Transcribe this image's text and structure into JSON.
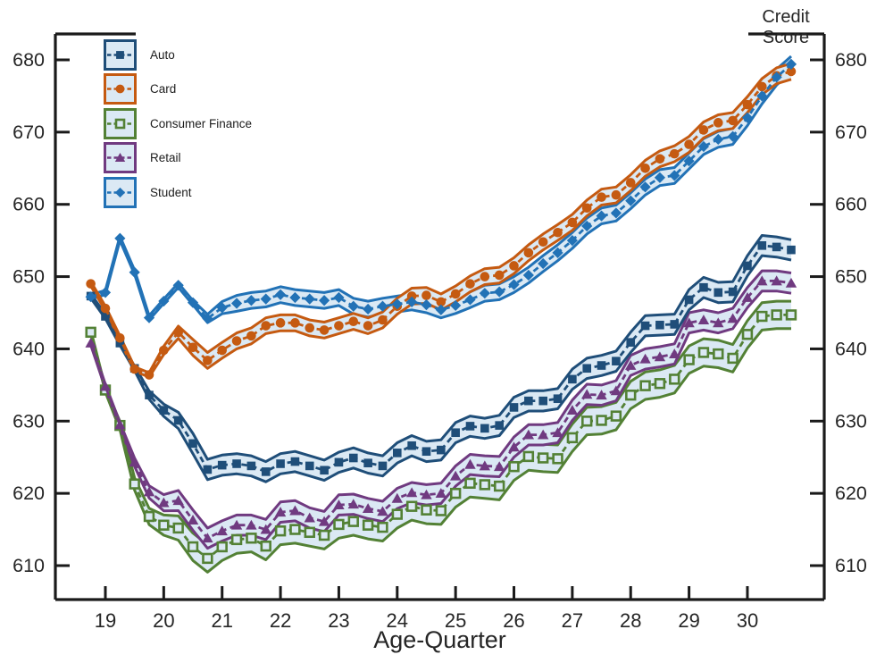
{
  "labels": {
    "y_axis_title": "Credit Score",
    "x_axis_title": "Age-Quarter"
  },
  "colors": {
    "band_fill": "#dbe9f4",
    "axis": "#1a1a1a",
    "text": "#262626"
  },
  "chart_data": {
    "type": "line",
    "title": "",
    "ylabel": "Credit Score",
    "xlabel": "Age-Quarter",
    "x_ticks": [
      19,
      20,
      21,
      22,
      23,
      24,
      25,
      26,
      27,
      28,
      29,
      30
    ],
    "y_ticks": [
      610,
      620,
      630,
      640,
      650,
      660,
      670,
      680
    ],
    "xlim": [
      18.15,
      31.31
    ],
    "ylim": [
      605.5,
      683.5
    ],
    "grid": false,
    "legend_position": "top-left-inside",
    "band_fill": "#dbe9f4",
    "x": [
      18.75,
      19.0,
      19.25,
      19.5,
      19.75,
      20.0,
      20.25,
      20.5,
      20.75,
      21.0,
      21.25,
      21.5,
      21.75,
      22.0,
      22.25,
      22.5,
      22.75,
      23.0,
      23.25,
      23.5,
      23.75,
      24.0,
      24.25,
      24.5,
      24.75,
      25.0,
      25.25,
      25.5,
      25.75,
      26.0,
      26.25,
      26.5,
      26.75,
      27.0,
      27.25,
      27.5,
      27.75,
      28.0,
      28.25,
      28.5,
      28.75,
      29.0,
      29.25,
      29.5,
      29.75,
      30.0,
      30.25,
      30.5,
      30.75
    ],
    "series": [
      {
        "name": "Auto",
        "color": "#1f4e79",
        "marker": "square",
        "line_style": "dashed",
        "band_max_halfwidth": 1.4,
        "band_ramp_start_age": 19.5,
        "values": [
          647.3,
          644.5,
          640.8,
          637.3,
          633.6,
          631.5,
          630.1,
          626.9,
          623.3,
          623.9,
          624.1,
          623.8,
          623.0,
          624.1,
          624.4,
          623.8,
          623.2,
          624.3,
          624.9,
          624.2,
          623.8,
          625.6,
          626.6,
          625.8,
          626.0,
          628.4,
          629.3,
          629.0,
          629.4,
          631.9,
          632.8,
          632.8,
          633.1,
          635.8,
          637.3,
          637.7,
          638.3,
          640.9,
          643.2,
          643.3,
          643.4,
          646.8,
          648.5,
          647.8,
          647.9,
          651.5,
          654.3,
          654.1,
          653.7
        ]
      },
      {
        "name": "Card",
        "color": "#c55a11",
        "marker": "circle",
        "line_style": "dashed",
        "band_max_halfwidth": 1.1,
        "band_ramp_start_age": 19.75,
        "values": [
          649.0,
          645.6,
          641.5,
          637.2,
          636.4,
          639.8,
          642.3,
          640.2,
          638.4,
          639.8,
          641.1,
          641.8,
          643.2,
          643.6,
          643.6,
          642.9,
          642.6,
          643.2,
          643.8,
          643.2,
          644.0,
          645.9,
          647.3,
          647.4,
          646.5,
          647.6,
          649.0,
          650.0,
          650.2,
          651.5,
          653.3,
          654.8,
          656.1,
          657.5,
          659.5,
          661.0,
          661.3,
          663.0,
          665.0,
          666.3,
          667.0,
          668.3,
          670.3,
          671.3,
          671.6,
          673.8,
          676.3,
          677.8,
          678.4
        ]
      },
      {
        "name": "Consumer Finance",
        "color": "#538135",
        "marker": "open-square",
        "line_style": "dashed",
        "band_max_halfwidth": 1.9,
        "band_ramp_start_age": 19.0,
        "values": [
          642.3,
          634.3,
          629.4,
          621.3,
          616.8,
          615.6,
          615.2,
          612.6,
          611.0,
          612.6,
          613.6,
          613.8,
          612.7,
          614.8,
          615.0,
          614.6,
          614.2,
          615.7,
          616.1,
          615.6,
          615.3,
          617.1,
          618.2,
          617.7,
          617.6,
          620.0,
          621.4,
          621.2,
          621.0,
          623.7,
          625.1,
          624.9,
          624.8,
          627.7,
          630.0,
          630.1,
          630.7,
          633.6,
          634.9,
          635.2,
          635.8,
          638.5,
          639.5,
          639.3,
          638.7,
          642.0,
          644.5,
          644.7,
          644.7
        ]
      },
      {
        "name": "Retail",
        "color": "#703a80",
        "marker": "triangle",
        "line_style": "dashed",
        "band_max_halfwidth": 1.4,
        "band_ramp_start_age": 19.25,
        "values": [
          640.8,
          634.8,
          629.5,
          624.3,
          620.2,
          618.7,
          619.0,
          616.3,
          613.8,
          614.8,
          615.6,
          615.6,
          615.0,
          617.4,
          617.6,
          616.6,
          616.1,
          618.4,
          618.5,
          617.9,
          617.5,
          619.3,
          620.1,
          619.8,
          620.0,
          622.4,
          624.0,
          623.8,
          623.7,
          626.4,
          628.1,
          628.1,
          628.4,
          631.5,
          633.7,
          633.6,
          634.2,
          637.7,
          638.6,
          638.9,
          639.3,
          643.6,
          644.0,
          643.6,
          644.2,
          647.1,
          649.4,
          649.4,
          649.1
        ]
      },
      {
        "name": "Student",
        "color": "#2272b6",
        "marker": "diamond",
        "line_style": "dashed",
        "band_max_halfwidth": 1.1,
        "band_ramp_start_age": 20.5,
        "values": [
          647.2,
          647.8,
          655.3,
          650.6,
          644.3,
          646.6,
          648.8,
          646.4,
          644.2,
          645.7,
          646.3,
          646.7,
          646.9,
          647.5,
          647.1,
          646.9,
          646.7,
          647.1,
          645.9,
          645.5,
          645.9,
          646.2,
          646.5,
          646.1,
          645.4,
          646.0,
          646.8,
          647.7,
          647.9,
          648.9,
          650.2,
          651.8,
          653.3,
          655.0,
          657.0,
          658.4,
          658.8,
          660.5,
          662.4,
          663.7,
          664.0,
          666.0,
          668.0,
          669.0,
          669.4,
          672.0,
          675.0,
          677.6,
          679.4
        ]
      }
    ]
  }
}
